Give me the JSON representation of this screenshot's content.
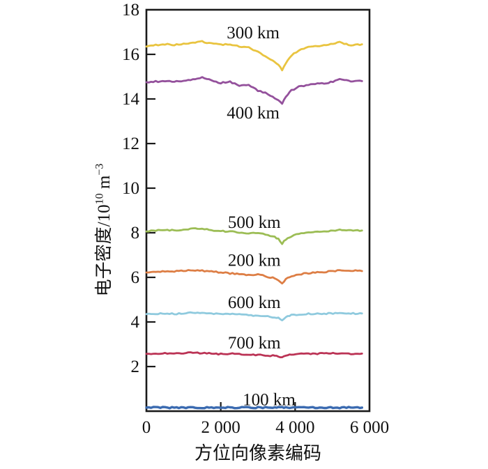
{
  "figure": {
    "background": "#ffffff",
    "frame_color": "#1a1a1a",
    "text_color": "#111111"
  },
  "axes": {
    "xlabel": "方位向像素编码",
    "ylabel_full": "电子密度/10^10 m^-3",
    "ylabel_parts": {
      "base1": "电子密度/10",
      "sup1": "10",
      "base2": " m",
      "sup2": "−3"
    }
  },
  "chart_data": {
    "type": "line",
    "title": "",
    "xlabel": "方位向像素编码",
    "ylabel": "电子密度/10^10 m^-3",
    "xlim": [
      0,
      6000
    ],
    "ylim": [
      0,
      18
    ],
    "grid": false,
    "legend": "inline labels next to each curve",
    "x_ticks": [
      {
        "v": 0,
        "label": "0",
        "mark": false
      },
      {
        "v": 2000,
        "label": "2 000",
        "mark": true
      },
      {
        "v": 4000,
        "label": "4 000",
        "mark": true
      },
      {
        "v": 6000,
        "label": "6 000",
        "mark": false
      }
    ],
    "y_ticks": [
      {
        "v": 2,
        "label": "2",
        "mark": true
      },
      {
        "v": 4,
        "label": "4",
        "mark": true
      },
      {
        "v": 6,
        "label": "6",
        "mark": true
      },
      {
        "v": 8,
        "label": "8",
        "mark": true
      },
      {
        "v": 10,
        "label": "10",
        "mark": true
      },
      {
        "v": 12,
        "label": "12",
        "mark": true
      },
      {
        "v": 14,
        "label": "14",
        "mark": true
      },
      {
        "v": 16,
        "label": "16",
        "mark": true
      },
      {
        "v": 18,
        "label": "18",
        "mark": false
      }
    ],
    "x": [
      0,
      250,
      500,
      750,
      1000,
      1250,
      1500,
      1750,
      2000,
      2250,
      2500,
      2750,
      3000,
      3200,
      3400,
      3550,
      3650,
      3750,
      3900,
      4100,
      4300,
      4600,
      4900,
      5200,
      5500,
      5800
    ],
    "series": [
      {
        "name": "300 km",
        "color": "#e9c440",
        "stroke_width": 2.8,
        "label_x": 2870,
        "label_y": 17.0,
        "values": [
          16.35,
          16.42,
          16.46,
          16.43,
          16.48,
          16.52,
          16.58,
          16.48,
          16.43,
          16.46,
          16.35,
          16.3,
          16.1,
          15.92,
          15.72,
          15.55,
          15.28,
          15.62,
          15.95,
          16.18,
          16.3,
          16.38,
          16.42,
          16.55,
          16.4,
          16.45
        ]
      },
      {
        "name": "400 km",
        "color": "#94519c",
        "stroke_width": 2.8,
        "label_x": 2870,
        "label_y": 13.4,
        "values": [
          14.75,
          14.78,
          14.8,
          14.78,
          14.82,
          14.86,
          14.96,
          14.82,
          14.72,
          14.78,
          14.58,
          14.63,
          14.38,
          14.28,
          14.08,
          13.95,
          13.78,
          14.1,
          14.38,
          14.55,
          14.62,
          14.68,
          14.72,
          14.88,
          14.78,
          14.8
        ]
      },
      {
        "name": "500 km",
        "color": "#9cbd55",
        "stroke_width": 2.8,
        "label_x": 2900,
        "label_y": 8.5,
        "values": [
          8.06,
          8.1,
          8.13,
          8.1,
          8.15,
          8.18,
          8.16,
          8.12,
          8.08,
          8.05,
          8.02,
          7.97,
          8.0,
          7.92,
          7.85,
          7.72,
          7.52,
          7.7,
          7.85,
          7.96,
          8.02,
          8.06,
          8.08,
          8.12,
          8.12,
          8.1
        ]
      },
      {
        "name": "200 km",
        "color": "#dd7e45",
        "stroke_width": 2.8,
        "label_x": 2900,
        "label_y": 6.8,
        "values": [
          6.22,
          6.25,
          6.28,
          6.26,
          6.3,
          6.32,
          6.3,
          6.26,
          6.22,
          6.18,
          6.15,
          6.1,
          6.14,
          6.05,
          5.98,
          5.88,
          5.74,
          5.92,
          6.05,
          6.14,
          6.18,
          6.22,
          6.26,
          6.32,
          6.3,
          6.28
        ]
      },
      {
        "name": "600 km",
        "color": "#8fcade",
        "stroke_width": 2.8,
        "label_x": 2900,
        "label_y": 4.9,
        "values": [
          4.35,
          4.36,
          4.38,
          4.36,
          4.39,
          4.41,
          4.39,
          4.37,
          4.35,
          4.36,
          4.33,
          4.3,
          4.28,
          4.26,
          4.22,
          4.17,
          4.08,
          4.21,
          4.31,
          4.34,
          4.36,
          4.37,
          4.38,
          4.4,
          4.38,
          4.38
        ]
      },
      {
        "name": "700 km",
        "color": "#bb3355",
        "stroke_width": 2.8,
        "label_x": 2900,
        "label_y": 3.1,
        "values": [
          2.57,
          2.58,
          2.6,
          2.58,
          2.6,
          2.62,
          2.6,
          2.58,
          2.56,
          2.58,
          2.55,
          2.53,
          2.52,
          2.5,
          2.49,
          2.45,
          2.4,
          2.48,
          2.54,
          2.56,
          2.57,
          2.58,
          2.6,
          2.59,
          2.58,
          2.58
        ]
      },
      {
        "name": "100 km",
        "color": "#3a6ab0",
        "stroke_width": 3.4,
        "label_x": 3300,
        "label_y": 0.55,
        "values": [
          0.16,
          0.16,
          0.16,
          0.16,
          0.16,
          0.16,
          0.16,
          0.16,
          0.16,
          0.16,
          0.16,
          0.16,
          0.16,
          0.16,
          0.16,
          0.16,
          0.16,
          0.16,
          0.16,
          0.16,
          0.16,
          0.16,
          0.16,
          0.16,
          0.16,
          0.16
        ]
      }
    ]
  }
}
